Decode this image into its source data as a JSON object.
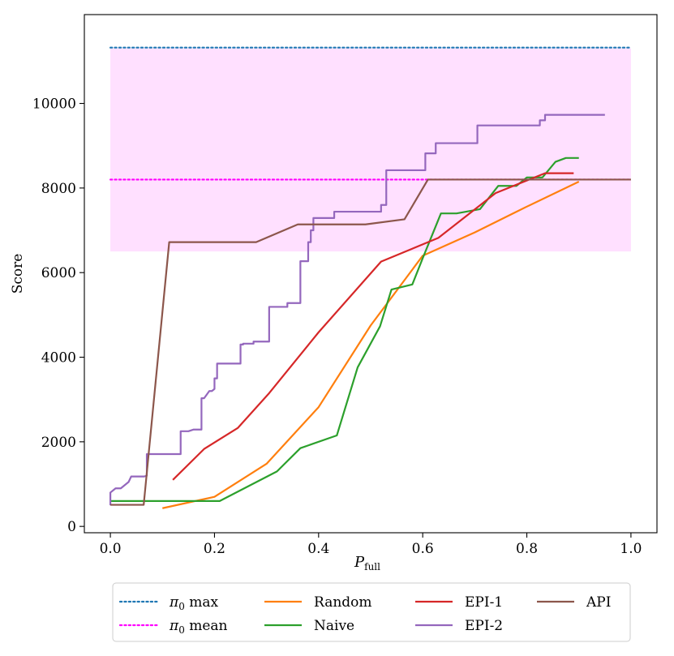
{
  "chart_data": {
    "type": "line",
    "title": "",
    "xlabel": "P",
    "xlabel_subscript": "full",
    "ylabel": "Score",
    "xlim": [
      -0.05,
      1.05
    ],
    "ylim": [
      -150,
      12100
    ],
    "xticks": [
      0.0,
      0.2,
      0.4,
      0.6,
      0.8,
      1.0
    ],
    "xtick_labels": [
      "0.0",
      "0.2",
      "0.4",
      "0.6",
      "0.8",
      "1.0"
    ],
    "yticks": [
      0,
      2000,
      4000,
      6000,
      8000,
      10000
    ],
    "ytick_labels": [
      "0",
      "2000",
      "4000",
      "6000",
      "8000",
      "10000"
    ],
    "grid": false,
    "legend_position": "below",
    "band": {
      "x_range": [
        0.0,
        1.0
      ],
      "y_range": [
        6500,
        11300
      ],
      "color": "#ffe0ff"
    },
    "series": [
      {
        "name": "π0 max",
        "legend_symbol": "π",
        "legend_subscript": "0",
        "legend_suffix": "max",
        "color": "#1f77b4",
        "dashed": true,
        "x": [
          0.0,
          1.0
        ],
        "y": [
          11320,
          11320
        ]
      },
      {
        "name": "π0 mean",
        "legend_symbol": "π",
        "legend_subscript": "0",
        "legend_suffix": "mean",
        "color": "#ff00ff",
        "dashed": true,
        "x": [
          0.0,
          1.0
        ],
        "y": [
          8200,
          8200
        ]
      },
      {
        "name": "Random",
        "color": "#ff7f0e",
        "dashed": false,
        "x": [
          0.1,
          0.2,
          0.3,
          0.4,
          0.5,
          0.6,
          0.7,
          0.8,
          0.9
        ],
        "y": [
          430,
          700,
          1480,
          2820,
          4750,
          6400,
          6950,
          7560,
          8150
        ]
      },
      {
        "name": "Naive",
        "color": "#2ca02c",
        "dashed": false,
        "x": [
          0.0,
          0.21,
          0.32,
          0.365,
          0.435,
          0.475,
          0.518,
          0.54,
          0.58,
          0.6,
          0.635,
          0.665,
          0.71,
          0.745,
          0.78,
          0.8,
          0.83,
          0.855,
          0.875,
          0.9
        ],
        "y": [
          600,
          600,
          1300,
          1850,
          2150,
          3760,
          4730,
          5600,
          5720,
          6340,
          7400,
          7400,
          7500,
          8050,
          8050,
          8250,
          8250,
          8620,
          8710,
          8710
        ]
      },
      {
        "name": "EPI-1",
        "color": "#d62728",
        "dashed": false,
        "x": [
          0.12,
          0.18,
          0.245,
          0.305,
          0.4,
          0.52,
          0.63,
          0.74,
          0.835,
          0.89
        ],
        "y": [
          1100,
          1830,
          2330,
          3150,
          4590,
          6260,
          6820,
          7880,
          8350,
          8350
        ]
      },
      {
        "name": "EPI-2",
        "color": "#9467bd",
        "dashed": false,
        "x": [
          0.0,
          0.0,
          0.01,
          0.02,
          0.035,
          0.04,
          0.055,
          0.065,
          0.07,
          0.07,
          0.135,
          0.135,
          0.15,
          0.16,
          0.17,
          0.175,
          0.175,
          0.18,
          0.19,
          0.195,
          0.2,
          0.2,
          0.205,
          0.205,
          0.25,
          0.25,
          0.255,
          0.255,
          0.275,
          0.275,
          0.305,
          0.305,
          0.34,
          0.34,
          0.365,
          0.365,
          0.38,
          0.38,
          0.385,
          0.385,
          0.39,
          0.39,
          0.43,
          0.43,
          0.52,
          0.52,
          0.53,
          0.53,
          0.605,
          0.605,
          0.625,
          0.625,
          0.705,
          0.705,
          0.825,
          0.825,
          0.835,
          0.835,
          0.95
        ],
        "y": [
          500,
          800,
          900,
          900,
          1050,
          1180,
          1180,
          1180,
          1200,
          1710,
          1710,
          2250,
          2250,
          2290,
          2290,
          2290,
          3030,
          3030,
          3200,
          3200,
          3250,
          3500,
          3500,
          3850,
          3850,
          4300,
          4300,
          4320,
          4320,
          4370,
          4370,
          5190,
          5190,
          5280,
          5280,
          6270,
          6270,
          6720,
          6720,
          7000,
          7000,
          7290,
          7290,
          7440,
          7440,
          7600,
          7600,
          8420,
          8420,
          8820,
          8820,
          9060,
          9060,
          9480,
          9480,
          9600,
          9600,
          9730,
          9730
        ]
      },
      {
        "name": "API",
        "color": "#8c564b",
        "dashed": false,
        "x": [
          0.0,
          0.064,
          0.113,
          0.28,
          0.36,
          0.49,
          0.565,
          0.61,
          1.0
        ],
        "y": [
          510,
          510,
          6720,
          6720,
          7140,
          7140,
          7260,
          8200,
          8200
        ]
      }
    ]
  }
}
